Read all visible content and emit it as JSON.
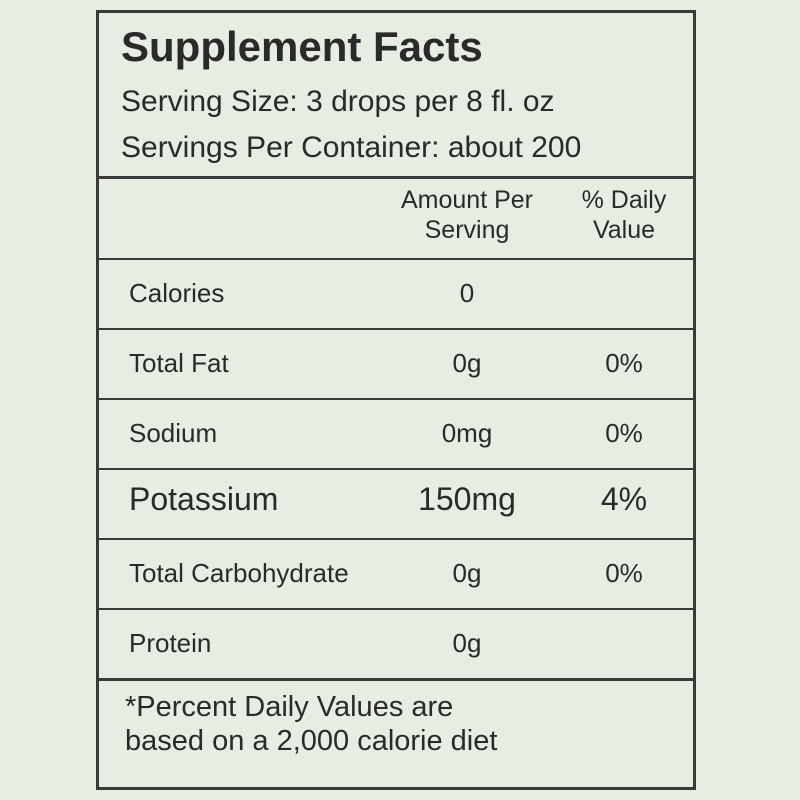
{
  "title": "Supplement Facts",
  "serving_size": "Serving Size: 3 drops per 8 fl. oz",
  "servings_per_container": "Servings Per Container: about 200",
  "table": {
    "header": [
      "Amount Per Serving",
      "% Daily Value"
    ],
    "rows": [
      [
        "Calories",
        "0"
      ],
      [
        "Total Fat",
        "0g",
        "0%"
      ],
      [
        "Sodium",
        "0mg",
        "0%"
      ],
      [
        "Potassium",
        "150mg",
        "4%"
      ],
      [
        "Total Carbohydrate",
        "0g",
        "0%"
      ],
      [
        "Protein",
        "0g"
      ]
    ]
  },
  "footnote": "*Percent Daily Values are based on a 2,000 calorie diet"
}
